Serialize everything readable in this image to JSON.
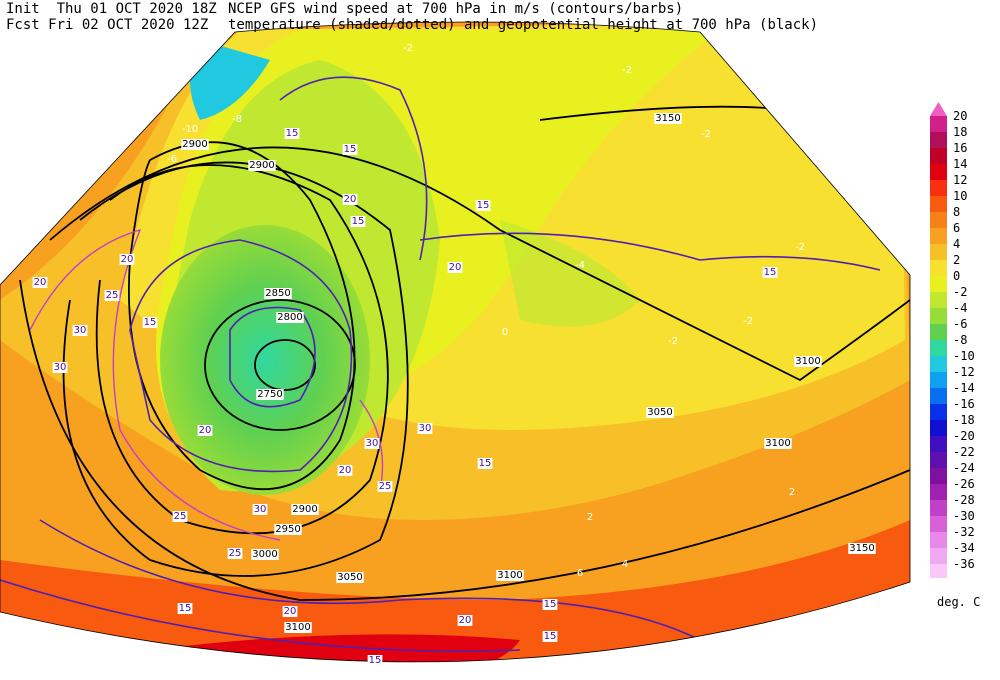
{
  "header": {
    "init": "Init  Thu 01 OCT 2020 18Z",
    "fcst": "Fcst Fri 02 OCT 2020 12Z",
    "line1": "NCEP GFS wind speed at 700 hPa in m/s (contours/barbs)",
    "line2": "temperature (shaded/dotted) and geopotential height at 700 hPa (black)"
  },
  "colorbar": {
    "unit": "deg. C",
    "levels": [
      20,
      18,
      16,
      14,
      12,
      10,
      8,
      6,
      4,
      2,
      0,
      -2,
      -4,
      -6,
      -8,
      -10,
      -12,
      -14,
      -16,
      -18,
      -20,
      -22,
      -24,
      -26,
      -28,
      -30,
      -32,
      -34,
      -36
    ],
    "colors": [
      "#f060c0",
      "#d0208a",
      "#b0105a",
      "#c00028",
      "#e00010",
      "#f83010",
      "#f85a10",
      "#f88018",
      "#f8a020",
      "#f8c028",
      "#f8e030",
      "#e8f020",
      "#c0e830",
      "#98dc38",
      "#60d050",
      "#30d8a0",
      "#20c8e0",
      "#10a0f0",
      "#0870f0",
      "#0830e8",
      "#1010d0",
      "#4010c0",
      "#6010b0",
      "#8010a0",
      "#a020b0",
      "#c040c8",
      "#d860d8",
      "#e888e8",
      "#f0a8f0",
      "#f8c8f8"
    ]
  },
  "map_labels": [
    "2900",
    "2900",
    "2850",
    "2800",
    "2750",
    "2900",
    "2950",
    "3000",
    "3050",
    "3100",
    "3100",
    "3150",
    "3100",
    "3050",
    "3100",
    "3150",
    "15",
    "15",
    "20",
    "15",
    "20",
    "15",
    "15",
    "20",
    "20",
    "25",
    "30",
    "15",
    "30",
    "20",
    "25",
    "30",
    "25",
    "15",
    "20",
    "20",
    "15",
    "15",
    "15",
    "15",
    "25",
    "30",
    "30",
    "20",
    "-10",
    "-8",
    "-6",
    "-2",
    "-2",
    "-2",
    "-2",
    "-2",
    "-2",
    "0",
    "-4",
    "2",
    "4",
    "6",
    "2"
  ]
}
